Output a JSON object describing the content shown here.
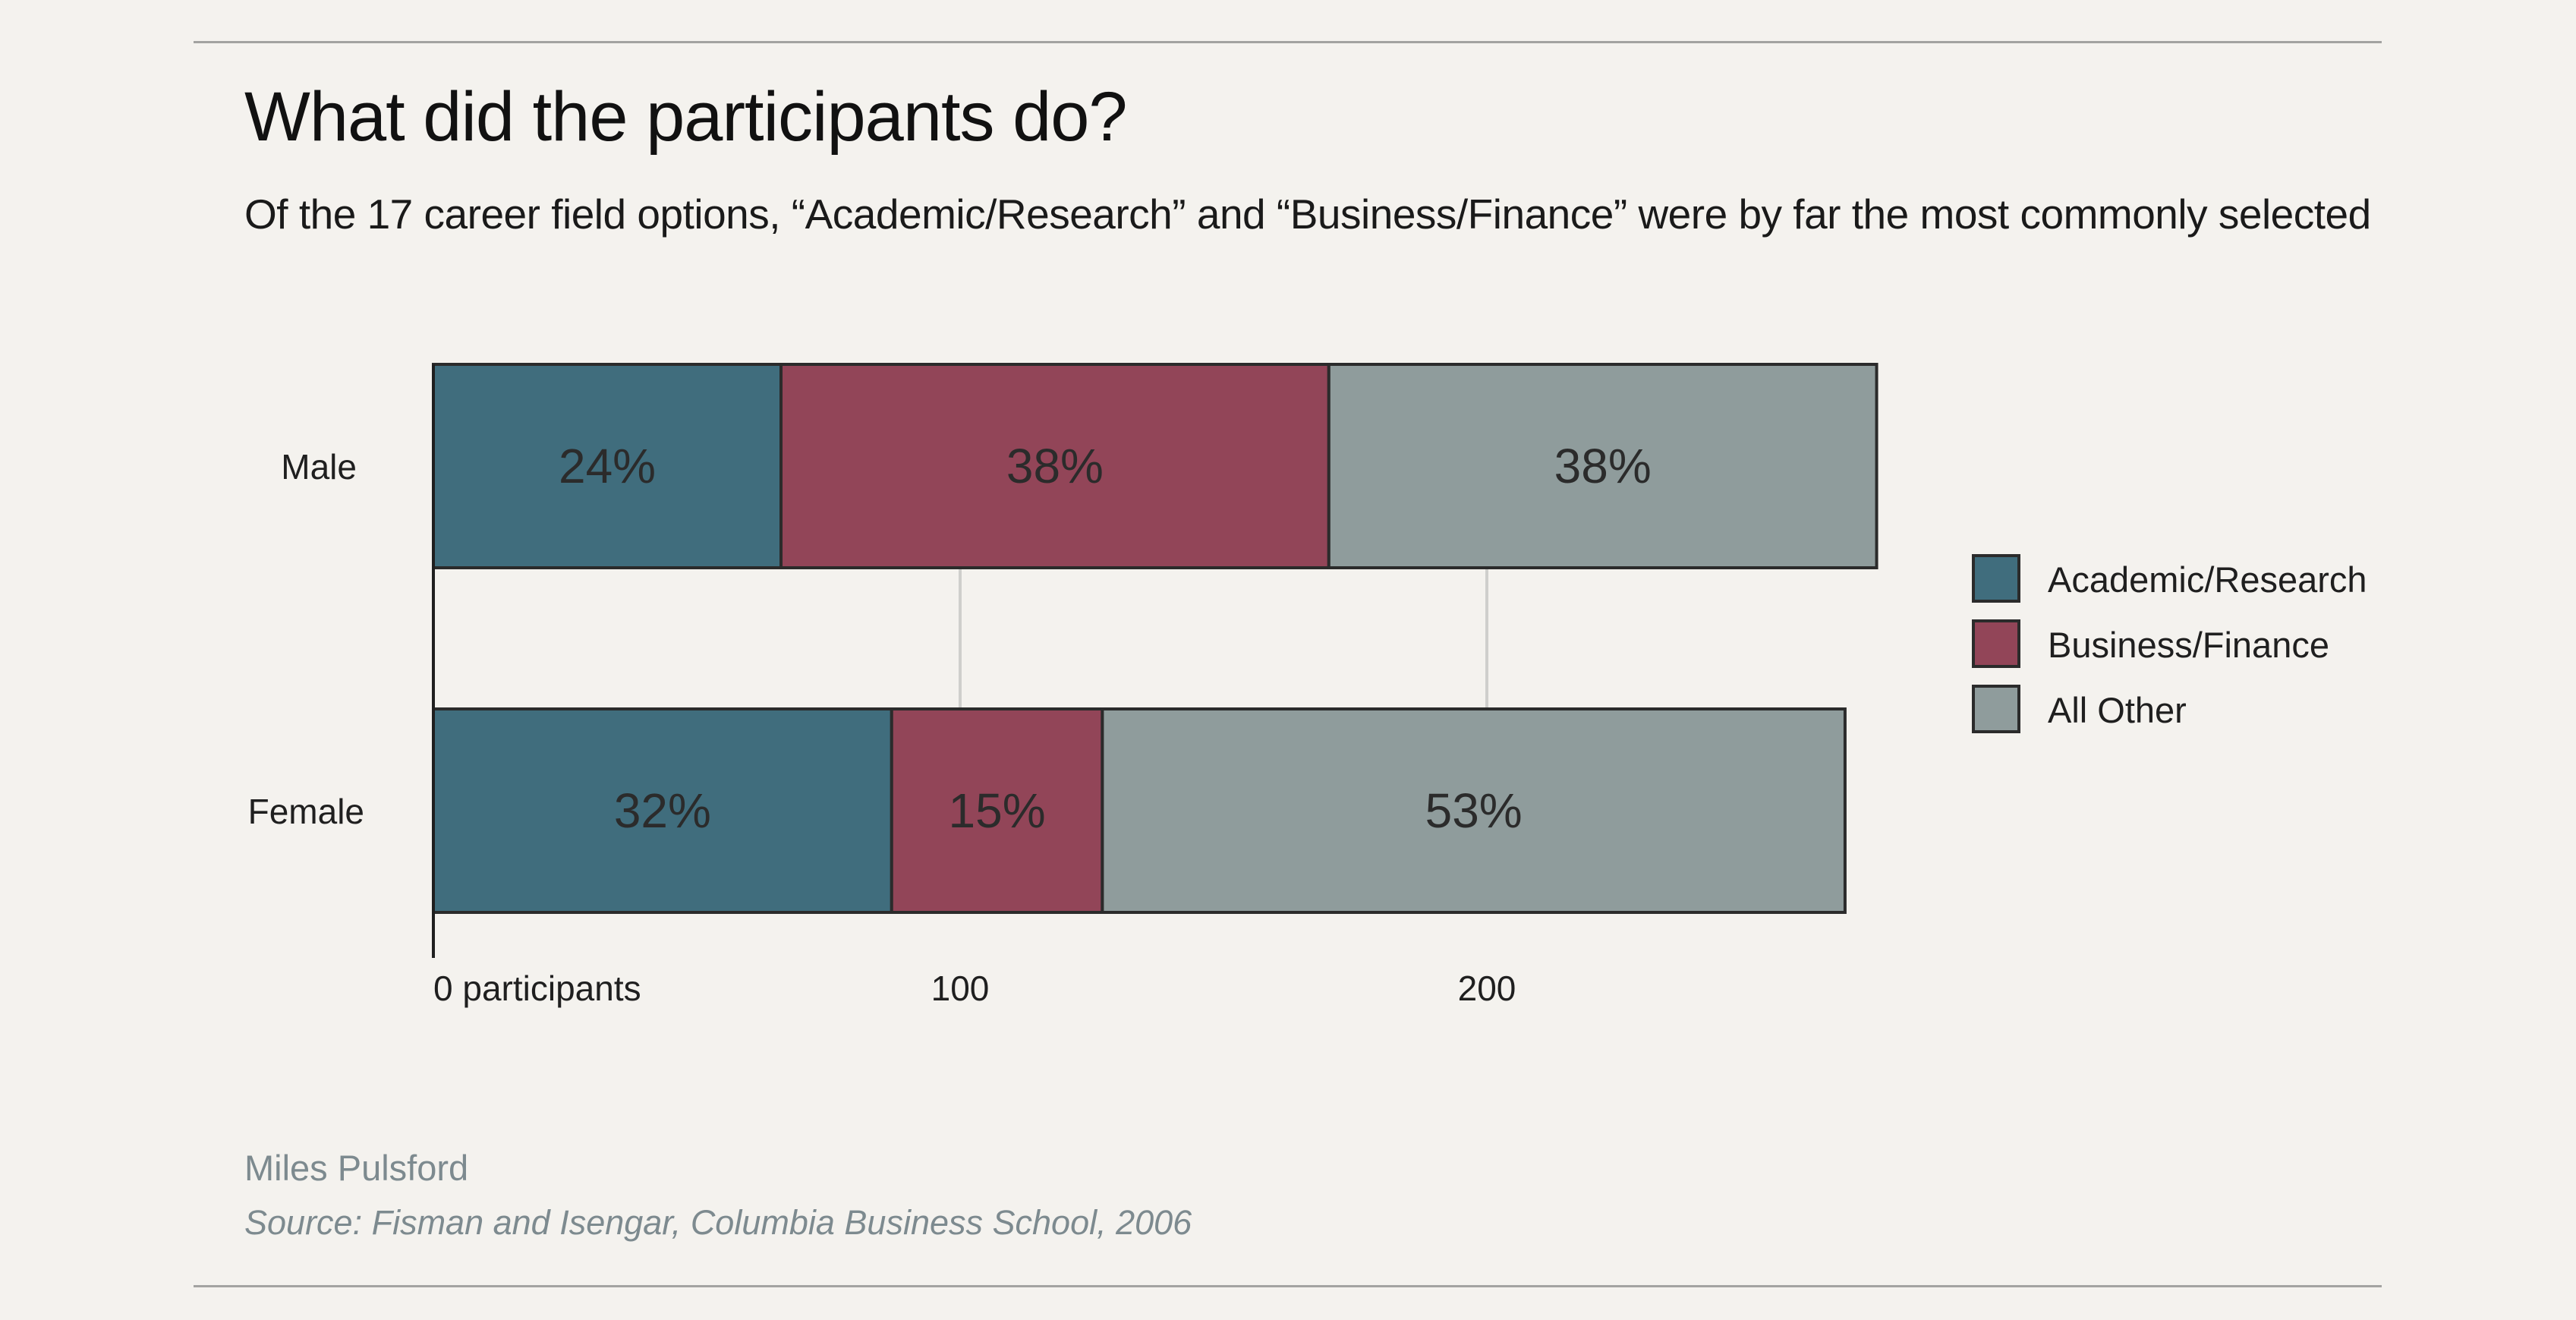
{
  "header": {
    "title": "What did the participants do?",
    "subtitle": "Of the 17 career field options, “Academic/Research” and “Business/Finance” were by far the most commonly selected"
  },
  "footer": {
    "byline": "Miles Pulsford",
    "source": "Source: Fisman and Isengar, Columbia Business School, 2006"
  },
  "legend": {
    "placement": "right",
    "items": [
      {
        "label": "Academic/Research",
        "color": "#406d7d"
      },
      {
        "label": "Business/Finance",
        "color": "#924558"
      },
      {
        "label": "All Other",
        "color": "#8f9c9c"
      }
    ]
  },
  "chart_data": {
    "type": "bar",
    "orientation": "horizontal",
    "stacked": true,
    "categories": [
      "Male",
      "Female"
    ],
    "series": [
      {
        "name": "Academic/Research",
        "color": "#406d7d",
        "values": [
          66,
          87
        ],
        "labels": [
          "24%",
          "32%"
        ]
      },
      {
        "name": "Business/Finance",
        "color": "#924558",
        "values": [
          104,
          40
        ],
        "labels": [
          "38%",
          "15%"
        ]
      },
      {
        "name": "All Other",
        "color": "#8f9c9c",
        "values": [
          104,
          141
        ],
        "labels": [
          "38%",
          "53%"
        ]
      }
    ],
    "xlim": [
      0,
      274
    ],
    "xticks": [
      0,
      100,
      200
    ],
    "xtick_labels": [
      "0 participants",
      "100",
      "200"
    ],
    "grid": "vertical",
    "title": "What did the participants do?",
    "subtitle": "Of the 17 career field options, “Academic/Research” and “Business/Finance” were by far the most commonly selected"
  }
}
